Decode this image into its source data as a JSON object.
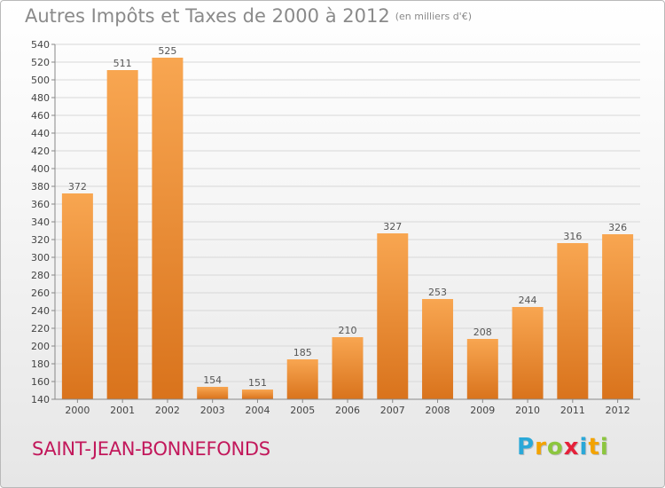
{
  "title": "Autres Impôts et Taxes de 2000 à 2012",
  "subtitle": "(en milliers d'€)",
  "commune": "SAINT-JEAN-BONNEFONDS",
  "logo": {
    "text": "Proxiti",
    "letters": [
      {
        "char": "P",
        "color": "#2aa8d8"
      },
      {
        "char": "r",
        "color": "#f3a300"
      },
      {
        "char": "o",
        "color": "#8cc63f"
      },
      {
        "char": "x",
        "color": "#e5213a"
      },
      {
        "char": "i",
        "color": "#2aa8d8"
      },
      {
        "char": "t",
        "color": "#f3a300"
      },
      {
        "char": "i",
        "color": "#8cc63f"
      }
    ]
  },
  "colors": {
    "bar_light": "#f8a651",
    "bar_dark": "#d9731c",
    "grid": "#d8d8d8",
    "axis": "#888888"
  },
  "chart_data": {
    "type": "bar",
    "title": "Autres Impôts et Taxes de 2000 à 2012",
    "subtitle": "(en milliers d'€)",
    "categories": [
      "2000",
      "2001",
      "2002",
      "2003",
      "2004",
      "2005",
      "2006",
      "2007",
      "2008",
      "2009",
      "2010",
      "2011",
      "2012"
    ],
    "values": [
      372,
      511,
      525,
      154,
      151,
      185,
      210,
      327,
      253,
      208,
      244,
      316,
      326
    ],
    "ylim": [
      140,
      540
    ],
    "ytick_step": 20,
    "grid": true,
    "data_labels": true
  }
}
